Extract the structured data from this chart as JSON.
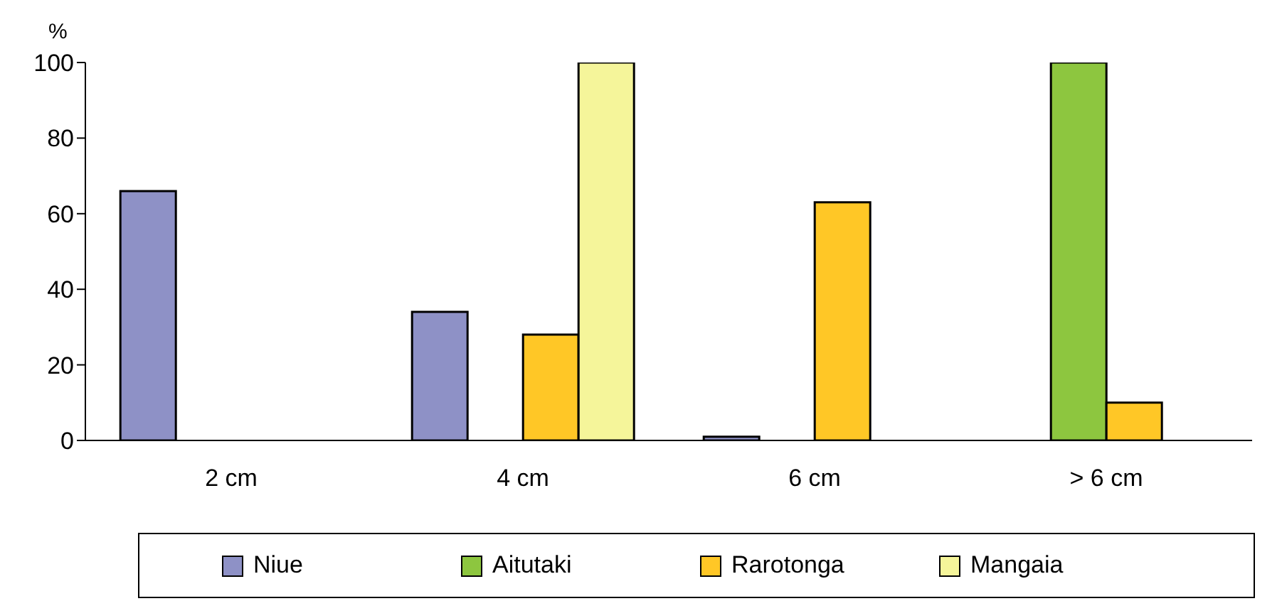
{
  "chart_data": {
    "type": "bar",
    "ylabel": "%",
    "categories": [
      "2 cm",
      "4 cm",
      "6 cm",
      "> 6 cm"
    ],
    "series": [
      {
        "name": "Niue",
        "color": "#8e91c6",
        "values": [
          66,
          34,
          1,
          null
        ]
      },
      {
        "name": "Aitutaki",
        "color": "#8dc63f",
        "values": [
          null,
          null,
          null,
          100
        ]
      },
      {
        "name": "Rarotonga",
        "color": "#ffc726",
        "values": [
          null,
          28,
          63,
          10
        ]
      },
      {
        "name": "Mangaia",
        "color": "#f5f59a",
        "values": [
          null,
          100,
          null,
          null
        ]
      }
    ],
    "ylim": [
      0,
      100
    ],
    "yticks": [
      0,
      20,
      40,
      60,
      80,
      100
    ],
    "grid": false,
    "legend": "bottom"
  }
}
